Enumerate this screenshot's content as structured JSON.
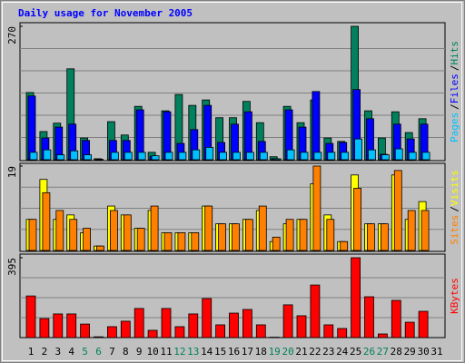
{
  "chart_data": [
    {
      "type": "bar",
      "title": "Daily usage for November 2005",
      "ylim": [
        0,
        270
      ],
      "yticks": [
        270
      ],
      "legend_separator": "/",
      "series": [
        {
          "name": "Hits",
          "color": "#00805c",
          "values": [
            136,
            57,
            74,
            184,
            44,
            2,
            77,
            50,
            108,
            15,
            99,
            132,
            110,
            121,
            85,
            85,
            118,
            75,
            6,
            108,
            75,
            121,
            44,
            37,
            270,
            99,
            44,
            97,
            55,
            83,
            0
          ]
        },
        {
          "name": "Files",
          "color": "#0000ff",
          "values": [
            129,
            44,
            66,
            72,
            39,
            1,
            39,
            39,
            101,
            7,
            97,
            33,
            61,
            110,
            35,
            72,
            97,
            37,
            2,
            101,
            66,
            138,
            33,
            35,
            142,
            83,
            11,
            72,
            42,
            72,
            0
          ]
        },
        {
          "name": "Pages",
          "color": "#00c0ff",
          "values": [
            15,
            20,
            10,
            18,
            10,
            0,
            15,
            15,
            15,
            8,
            15,
            15,
            20,
            25,
            15,
            15,
            15,
            15,
            2,
            20,
            15,
            15,
            15,
            15,
            42,
            20,
            10,
            22,
            15,
            15,
            0
          ]
        }
      ]
    },
    {
      "type": "bar",
      "ylim": [
        0,
        19
      ],
      "yticks": [
        19
      ],
      "legend_separator": "/",
      "series": [
        {
          "name": "Visits",
          "color": "#ffff00",
          "values": [
            7,
            16,
            7,
            8,
            4,
            1,
            10,
            8,
            5,
            9,
            4,
            4,
            4,
            10,
            6,
            6,
            7,
            9,
            2,
            6,
            7,
            15,
            8,
            2,
            17,
            6,
            6,
            17,
            7,
            11,
            0
          ]
        },
        {
          "name": "Sites",
          "color": "#ff8000",
          "values": [
            7,
            13,
            9,
            7,
            5,
            1,
            9,
            8,
            5,
            10,
            4,
            4,
            4,
            10,
            6,
            6,
            7,
            10,
            3,
            7,
            7,
            19,
            7,
            2,
            14,
            6,
            6,
            18,
            9,
            9,
            0
          ]
        }
      ]
    },
    {
      "type": "bar",
      "ylim": [
        0,
        395
      ],
      "yticks": [
        395
      ],
      "categories": [
        "1",
        "2",
        "3",
        "4",
        "5",
        "6",
        "7",
        "8",
        "9",
        "10",
        "11",
        "12",
        "13",
        "14",
        "15",
        "16",
        "17",
        "18",
        "19",
        "20",
        "21",
        "22",
        "23",
        "24",
        "25",
        "26",
        "27",
        "28",
        "29",
        "30",
        "31"
      ],
      "category_colors": [
        "#000000",
        "#000000",
        "#000000",
        "#000000",
        "#00805c",
        "#00805c",
        "#000000",
        "#000000",
        "#000000",
        "#000000",
        "#000000",
        "#00805c",
        "#00805c",
        "#000000",
        "#000000",
        "#000000",
        "#000000",
        "#000000",
        "#00805c",
        "#00805c",
        "#000000",
        "#000000",
        "#000000",
        "#000000",
        "#000000",
        "#00805c",
        "#00805c",
        "#000000",
        "#000000",
        "#000000",
        "#000000"
      ],
      "series": [
        {
          "name": "KBytes",
          "color": "#ff0000",
          "values": [
            206,
            94,
            117,
            117,
            67,
            4,
            54,
            81,
            144,
            36,
            144,
            54,
            117,
            193,
            63,
            121,
            139,
            63,
            2,
            162,
            108,
            260,
            63,
            45,
            395,
            202,
            18,
            184,
            76,
            130,
            0
          ]
        }
      ]
    }
  ]
}
